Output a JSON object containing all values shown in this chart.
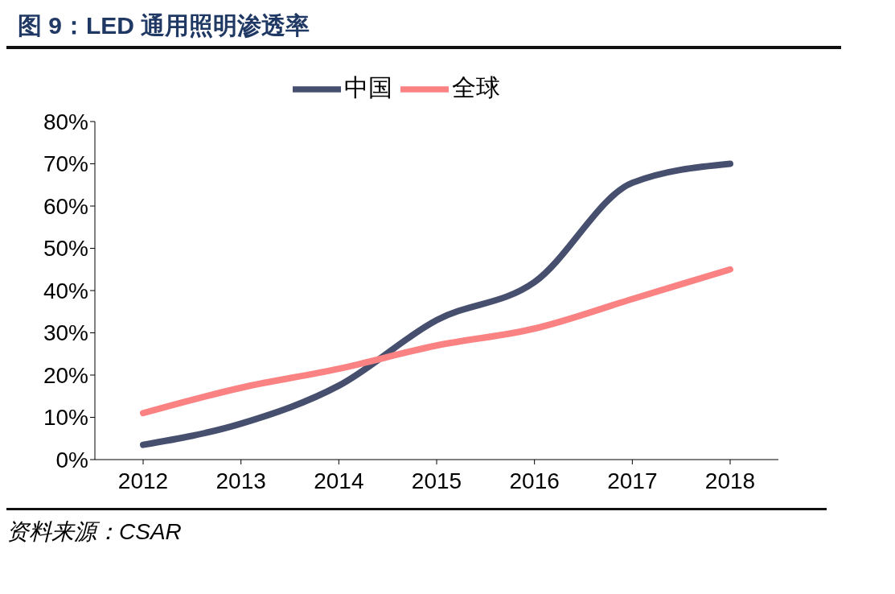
{
  "chart_data": {
    "type": "line",
    "title": "图 9：LED 通用照明渗透率",
    "categories": [
      "2012",
      "2013",
      "2014",
      "2015",
      "2016",
      "2017",
      "2018"
    ],
    "series": [
      {
        "name": "中国",
        "color": "#474f6f",
        "values": [
          3.5,
          8.5,
          17.5,
          33,
          42,
          65.5,
          70
        ]
      },
      {
        "name": "全球",
        "color": "#fa8282",
        "values": [
          11,
          17,
          21.5,
          27,
          31,
          38,
          45
        ]
      }
    ],
    "ylim": [
      0,
      80
    ],
    "yticks": [
      {
        "value": 0,
        "label": "0%"
      },
      {
        "value": 10,
        "label": "10%"
      },
      {
        "value": 20,
        "label": "20%"
      },
      {
        "value": 30,
        "label": "30%"
      },
      {
        "value": 40,
        "label": "40%"
      },
      {
        "value": 50,
        "label": "50%"
      },
      {
        "value": 60,
        "label": "60%"
      },
      {
        "value": 70,
        "label": "70%"
      },
      {
        "value": 80,
        "label": "80%"
      }
    ],
    "grid": false,
    "legend": "top",
    "marker": "none",
    "line_style": "solid",
    "annotations": [
      "资料来源：CSAR"
    ]
  }
}
